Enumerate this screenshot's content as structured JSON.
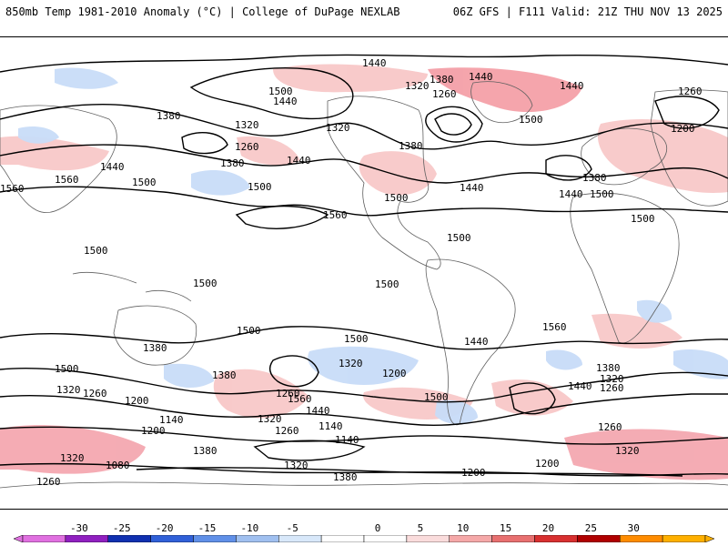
{
  "header": {
    "title_left": "850mb Temp 1981-2010 Anomaly (°C) | College of DuPage NEXLAB",
    "title_right": "06Z GFS | F111 Valid: 21Z THU NOV 13 2025"
  },
  "map": {
    "contour_labels": [
      {
        "id": "c1",
        "text": "1440"
      },
      {
        "id": "c2",
        "text": "1380"
      },
      {
        "id": "c3",
        "text": "1440"
      },
      {
        "id": "c4",
        "text": "1320"
      },
      {
        "id": "c5",
        "text": "1260"
      },
      {
        "id": "c6",
        "text": "1440"
      },
      {
        "id": "c7",
        "text": "1500"
      },
      {
        "id": "c8",
        "text": "1440"
      },
      {
        "id": "c9",
        "text": "1500"
      },
      {
        "id": "c10",
        "text": "1260"
      },
      {
        "id": "c11",
        "text": "1200"
      },
      {
        "id": "c12",
        "text": "1380"
      },
      {
        "id": "c13",
        "text": "1320"
      },
      {
        "id": "c14",
        "text": "1320"
      },
      {
        "id": "c15",
        "text": "1260"
      },
      {
        "id": "c16",
        "text": "1380"
      },
      {
        "id": "c17",
        "text": "1440"
      },
      {
        "id": "c18",
        "text": "1380"
      },
      {
        "id": "c19",
        "text": "1440"
      },
      {
        "id": "c20",
        "text": "1500"
      },
      {
        "id": "c21",
        "text": "1560"
      },
      {
        "id": "c22",
        "text": "1500"
      },
      {
        "id": "c23",
        "text": "1560"
      },
      {
        "id": "c24",
        "text": "1440"
      },
      {
        "id": "c25",
        "text": "1500"
      },
      {
        "id": "c26",
        "text": "1380"
      },
      {
        "id": "c27",
        "text": "1440"
      },
      {
        "id": "c28",
        "text": "1500"
      },
      {
        "id": "c29",
        "text": "1560"
      },
      {
        "id": "c30",
        "text": "1500"
      },
      {
        "id": "c31",
        "text": "1500"
      },
      {
        "id": "c32",
        "text": "1500"
      },
      {
        "id": "c33",
        "text": "1500"
      },
      {
        "id": "c34",
        "text": "1500"
      },
      {
        "id": "c35",
        "text": "1560"
      },
      {
        "id": "c36",
        "text": "1500"
      },
      {
        "id": "c37",
        "text": "1500"
      },
      {
        "id": "c38",
        "text": "1440"
      },
      {
        "id": "c39",
        "text": "1380"
      },
      {
        "id": "c40",
        "text": "1500"
      },
      {
        "id": "c41",
        "text": "1320"
      },
      {
        "id": "c42",
        "text": "1260"
      },
      {
        "id": "c43",
        "text": "1200"
      },
      {
        "id": "c44",
        "text": "1140"
      },
      {
        "id": "c45",
        "text": "1200"
      },
      {
        "id": "c46",
        "text": "1380"
      },
      {
        "id": "c47",
        "text": "1320"
      },
      {
        "id": "c48",
        "text": "1260"
      },
      {
        "id": "c49",
        "text": "1560"
      },
      {
        "id": "c50",
        "text": "1440"
      },
      {
        "id": "c51",
        "text": "1320"
      },
      {
        "id": "c52",
        "text": "1200"
      },
      {
        "id": "c53",
        "text": "1260"
      },
      {
        "id": "c54",
        "text": "1140"
      },
      {
        "id": "c55",
        "text": "1380"
      },
      {
        "id": "c56",
        "text": "1320"
      },
      {
        "id": "c57",
        "text": "1080"
      },
      {
        "id": "c58",
        "text": "1140"
      },
      {
        "id": "c59",
        "text": "1380"
      },
      {
        "id": "c60",
        "text": "1320"
      },
      {
        "id": "c61",
        "text": "1260"
      },
      {
        "id": "c62",
        "text": "1500"
      },
      {
        "id": "c63",
        "text": "1380"
      },
      {
        "id": "c64",
        "text": "1440"
      },
      {
        "id": "c65",
        "text": "1320"
      },
      {
        "id": "c66",
        "text": "1260"
      },
      {
        "id": "c67",
        "text": "1200"
      },
      {
        "id": "c68",
        "text": "1200"
      },
      {
        "id": "c69",
        "text": "1320"
      },
      {
        "id": "c70",
        "text": "1260"
      }
    ]
  },
  "colorbar": {
    "colors": [
      "#e070e0",
      "#9020c0",
      "#1030b0",
      "#3060d8",
      "#6090e8",
      "#a0c0f0",
      "#d8e8fa",
      "#ffffff",
      "#ffffff",
      "#fadcdc",
      "#f5a8a8",
      "#e87070",
      "#d83030",
      "#b00000",
      "#ff8c00",
      "#ffb000"
    ],
    "ticks": [
      "-30",
      "-25",
      "-20",
      "-15",
      "-10",
      "-5",
      "0",
      "5",
      "10",
      "15",
      "20",
      "25",
      "30"
    ]
  }
}
